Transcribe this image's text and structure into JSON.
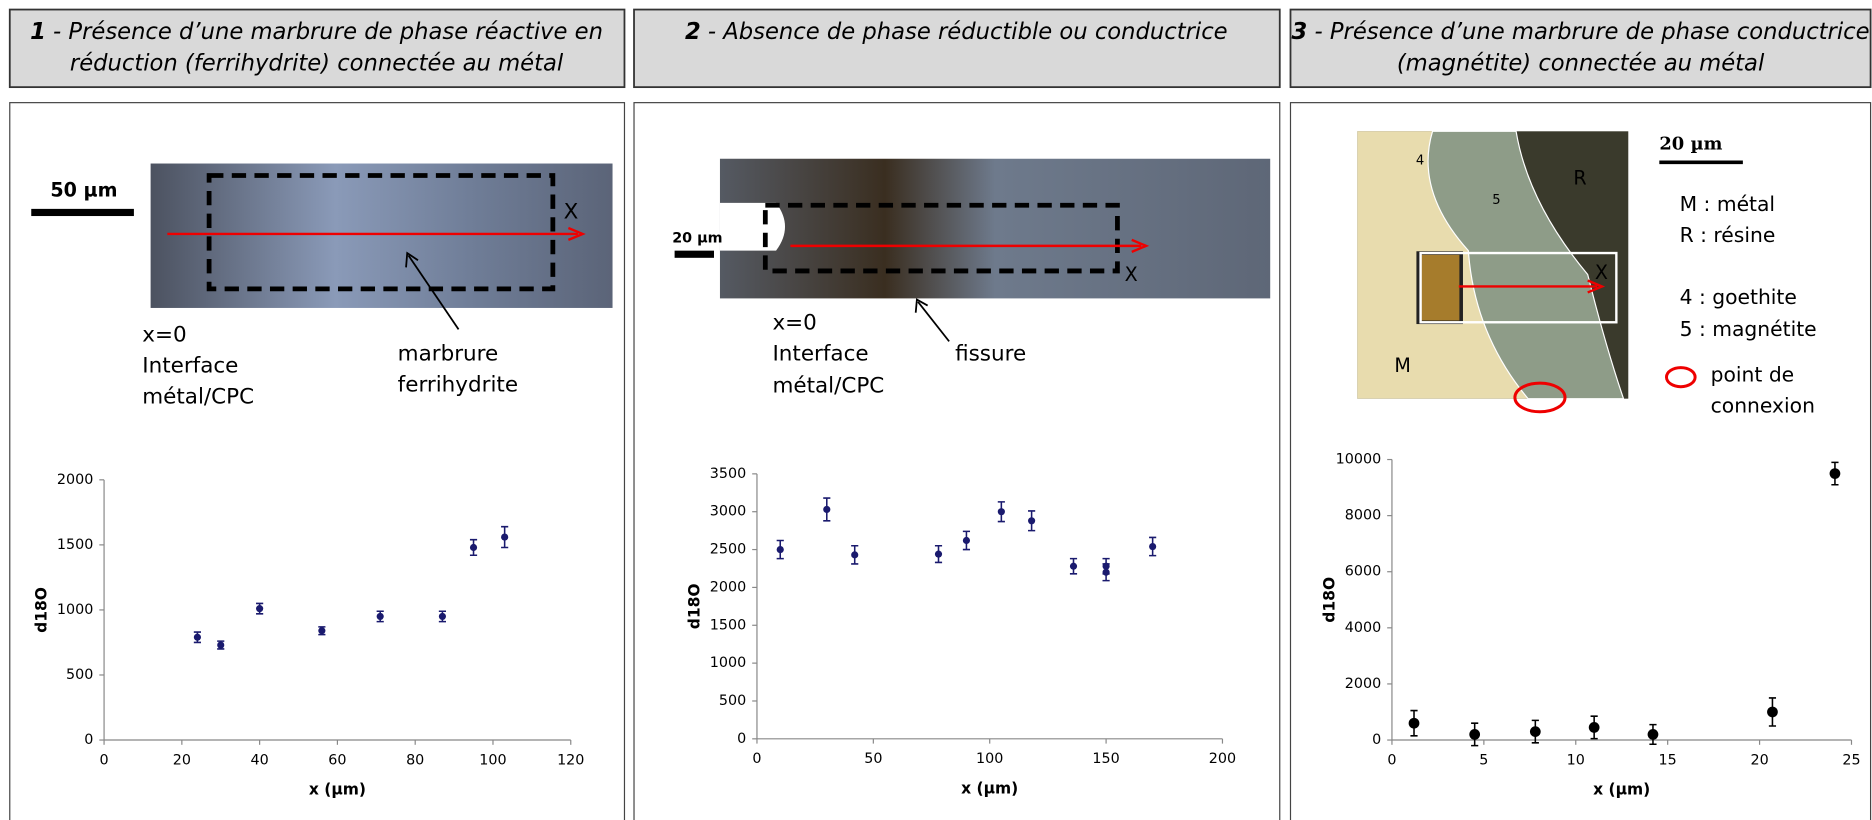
{
  "panels": [
    {
      "number": "1",
      "header": [
        "- Présence d’une marbrure de phase réactive en",
        "réduction (ferrihydrite) connectée au métal"
      ],
      "labels": [
        "50 µm",
        "X",
        "x=0",
        "Interface",
        "métal/CPC",
        "marbrure",
        "ferrihydrite"
      ]
    },
    {
      "number": "2",
      "header": [
        "- Absence de phase réductible ou conductrice"
      ],
      "labels": [
        "20 µm",
        "X",
        "x=0",
        "Interface",
        "métal/CPC",
        "fissure"
      ]
    },
    {
      "number": "3",
      "header": [
        "- Présence d’une marbrure de phase conductrice",
        "(magnétite) connectée au métal"
      ],
      "labels": [
        "20 µm",
        "4",
        "5",
        "R",
        "M",
        "X",
        "M : métal",
        "R : résine",
        "4 : goethite",
        "5 : magnétite",
        "point de",
        "connexion"
      ]
    }
  ],
  "chart_data": [
    {
      "type": "scatter",
      "x_label": "x (µm)",
      "y_label": "d18O",
      "color": "#1a1a6e",
      "x": [
        24,
        30,
        40,
        56,
        71,
        87,
        95,
        103
      ],
      "values": [
        790,
        730,
        1010,
        840,
        950,
        950,
        1480,
        1560
      ],
      "errors": [
        40,
        30,
        40,
        30,
        40,
        40,
        60,
        80
      ],
      "xlim": [
        0,
        120
      ],
      "xticks": [
        0,
        20,
        40,
        60,
        80,
        100,
        120
      ],
      "ylim": [
        0,
        2000
      ],
      "yticks": [
        0,
        500,
        1000,
        1500,
        2000
      ]
    },
    {
      "type": "scatter",
      "x_label": "x (µm)",
      "y_label": "d18O",
      "color": "#1a1a6e",
      "x": [
        10,
        30,
        42,
        78,
        90,
        105,
        118,
        136,
        150,
        150,
        170
      ],
      "values": [
        2500,
        3030,
        2430,
        2440,
        2620,
        3000,
        2880,
        2280,
        2280,
        2200,
        2540
      ],
      "errors": [
        120,
        150,
        120,
        110,
        120,
        130,
        130,
        100,
        100,
        110,
        120
      ],
      "xlim": [
        0,
        200
      ],
      "xticks": [
        0,
        50,
        100,
        150,
        200
      ],
      "ylim": [
        0,
        3500
      ],
      "yticks": [
        0,
        500,
        1000,
        1500,
        2000,
        2500,
        3000,
        3500
      ]
    },
    {
      "type": "scatter",
      "x_label": "x (µm)",
      "y_label": "d18O",
      "color": "#000000",
      "x": [
        1.2,
        4.5,
        7.8,
        11,
        14.2,
        20.7,
        24.1
      ],
      "values": [
        600,
        200,
        300,
        450,
        200,
        1000,
        9500
      ],
      "errors": [
        450,
        400,
        400,
        400,
        350,
        500,
        400
      ],
      "xlim": [
        0,
        25
      ],
      "xticks": [
        0,
        5,
        10,
        15,
        20,
        25
      ],
      "ylim": [
        0,
        10000
      ],
      "yticks": [
        0,
        2000,
        4000,
        6000,
        8000,
        10000
      ]
    }
  ]
}
